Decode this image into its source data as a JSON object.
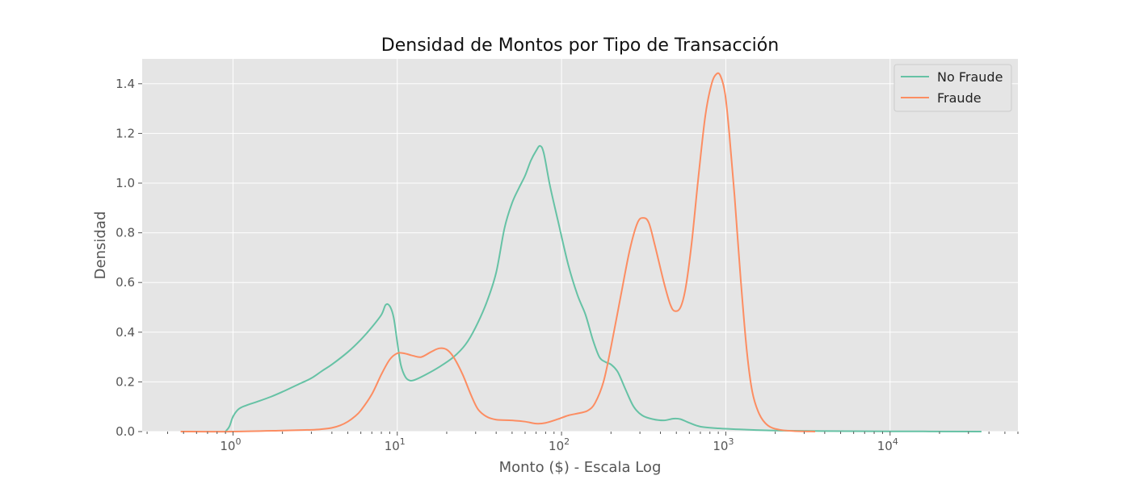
{
  "chart_data": {
    "type": "line",
    "title": "Densidad de Montos por Tipo de Transacción",
    "xlabel": "Monto ($) - Escala Log",
    "ylabel": "Densidad",
    "xscale": "log",
    "xlim": [
      0.28,
      60000
    ],
    "ylim": [
      0,
      1.5
    ],
    "grid": true,
    "legend_position": "top-right",
    "x_ticks": [
      {
        "value": 1,
        "base": "10",
        "exp": "0"
      },
      {
        "value": 10,
        "base": "10",
        "exp": "1"
      },
      {
        "value": 100,
        "base": "10",
        "exp": "2"
      },
      {
        "value": 1000,
        "base": "10",
        "exp": "3"
      },
      {
        "value": 10000,
        "base": "10",
        "exp": "4"
      }
    ],
    "y_ticks": [
      "0.0",
      "0.2",
      "0.4",
      "0.6",
      "0.8",
      "1.0",
      "1.2",
      "1.4"
    ],
    "colors": {
      "background": "#e5e5e5",
      "grid": "#ffffff"
    },
    "series": [
      {
        "name": "No Fraude",
        "color": "#66c2a5",
        "points": [
          [
            0.9,
            0.0
          ],
          [
            0.95,
            0.02
          ],
          [
            1.0,
            0.06
          ],
          [
            1.08,
            0.09
          ],
          [
            1.2,
            0.105
          ],
          [
            1.4,
            0.12
          ],
          [
            1.7,
            0.14
          ],
          [
            2.0,
            0.16
          ],
          [
            2.5,
            0.19
          ],
          [
            3.0,
            0.215
          ],
          [
            3.5,
            0.245
          ],
          [
            4.0,
            0.27
          ],
          [
            5.0,
            0.32
          ],
          [
            6.0,
            0.37
          ],
          [
            7.0,
            0.42
          ],
          [
            8.0,
            0.47
          ],
          [
            8.5,
            0.51
          ],
          [
            9.0,
            0.505
          ],
          [
            9.5,
            0.46
          ],
          [
            10.0,
            0.36
          ],
          [
            10.5,
            0.27
          ],
          [
            11.2,
            0.22
          ],
          [
            12.0,
            0.205
          ],
          [
            13.0,
            0.21
          ],
          [
            15.0,
            0.23
          ],
          [
            18.0,
            0.26
          ],
          [
            22.0,
            0.3
          ],
          [
            26.0,
            0.35
          ],
          [
            30.0,
            0.42
          ],
          [
            35.0,
            0.52
          ],
          [
            40.0,
            0.64
          ],
          [
            45.0,
            0.82
          ],
          [
            50.0,
            0.92
          ],
          [
            55.0,
            0.98
          ],
          [
            60.0,
            1.03
          ],
          [
            65.0,
            1.09
          ],
          [
            70.0,
            1.13
          ],
          [
            74.0,
            1.15
          ],
          [
            78.0,
            1.12
          ],
          [
            85.0,
            0.99
          ],
          [
            95.0,
            0.85
          ],
          [
            110.0,
            0.67
          ],
          [
            125.0,
            0.55
          ],
          [
            140.0,
            0.47
          ],
          [
            155.0,
            0.37
          ],
          [
            170.0,
            0.3
          ],
          [
            185.0,
            0.28
          ],
          [
            200.0,
            0.27
          ],
          [
            220.0,
            0.24
          ],
          [
            245.0,
            0.17
          ],
          [
            275.0,
            0.1
          ],
          [
            310.0,
            0.065
          ],
          [
            360.0,
            0.05
          ],
          [
            420.0,
            0.045
          ],
          [
            480.0,
            0.052
          ],
          [
            530.0,
            0.05
          ],
          [
            600.0,
            0.035
          ],
          [
            700.0,
            0.02
          ],
          [
            900.0,
            0.013
          ],
          [
            1300.0,
            0.008
          ],
          [
            2000.0,
            0.004
          ],
          [
            4000.0,
            0.002
          ],
          [
            10000.0,
            0.001
          ],
          [
            36000.0,
            0.0
          ]
        ]
      },
      {
        "name": "Fraude",
        "color": "#fc8d62",
        "points": [
          [
            0.48,
            0.0
          ],
          [
            1.0,
            0.0
          ],
          [
            2.0,
            0.004
          ],
          [
            3.0,
            0.007
          ],
          [
            3.5,
            0.01
          ],
          [
            4.0,
            0.015
          ],
          [
            4.5,
            0.025
          ],
          [
            5.0,
            0.04
          ],
          [
            5.5,
            0.06
          ],
          [
            6.0,
            0.085
          ],
          [
            7.0,
            0.15
          ],
          [
            8.0,
            0.23
          ],
          [
            9.0,
            0.29
          ],
          [
            10.0,
            0.315
          ],
          [
            11.0,
            0.315
          ],
          [
            12.5,
            0.305
          ],
          [
            14.0,
            0.3
          ],
          [
            16.0,
            0.32
          ],
          [
            18.0,
            0.335
          ],
          [
            20.0,
            0.33
          ],
          [
            22.0,
            0.3
          ],
          [
            25.0,
            0.23
          ],
          [
            28.0,
            0.15
          ],
          [
            31.0,
            0.09
          ],
          [
            35.0,
            0.06
          ],
          [
            40.0,
            0.048
          ],
          [
            50.0,
            0.045
          ],
          [
            60.0,
            0.04
          ],
          [
            70.0,
            0.032
          ],
          [
            80.0,
            0.035
          ],
          [
            95.0,
            0.05
          ],
          [
            110.0,
            0.065
          ],
          [
            130.0,
            0.075
          ],
          [
            145.0,
            0.085
          ],
          [
            160.0,
            0.115
          ],
          [
            180.0,
            0.2
          ],
          [
            200.0,
            0.34
          ],
          [
            230.0,
            0.55
          ],
          [
            260.0,
            0.73
          ],
          [
            290.0,
            0.84
          ],
          [
            315.0,
            0.86
          ],
          [
            340.0,
            0.84
          ],
          [
            370.0,
            0.75
          ],
          [
            420.0,
            0.6
          ],
          [
            460.0,
            0.51
          ],
          [
            490.0,
            0.485
          ],
          [
            530.0,
            0.5
          ],
          [
            570.0,
            0.58
          ],
          [
            620.0,
            0.76
          ],
          [
            680.0,
            1.02
          ],
          [
            750.0,
            1.27
          ],
          [
            820.0,
            1.4
          ],
          [
            880.0,
            1.44
          ],
          [
            930.0,
            1.43
          ],
          [
            990.0,
            1.36
          ],
          [
            1050.0,
            1.2
          ],
          [
            1130.0,
            0.95
          ],
          [
            1230.0,
            0.62
          ],
          [
            1340.0,
            0.33
          ],
          [
            1450.0,
            0.16
          ],
          [
            1600.0,
            0.07
          ],
          [
            1800.0,
            0.025
          ],
          [
            2100.0,
            0.008
          ],
          [
            2600.0,
            0.002
          ],
          [
            3500.0,
            0.0
          ]
        ]
      }
    ]
  }
}
